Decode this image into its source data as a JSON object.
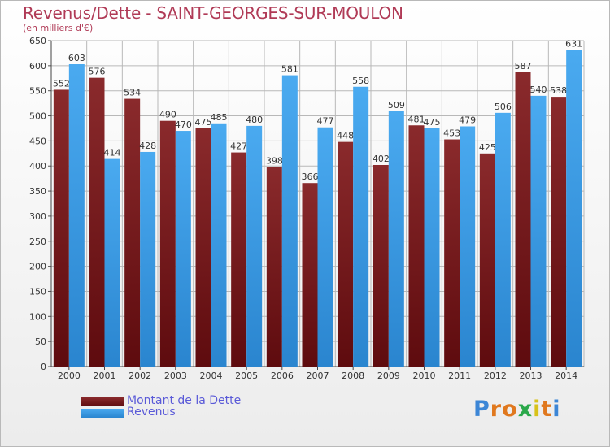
{
  "title": "Revenus/Dette - SAINT-GEORGES-SUR-MOULON",
  "subtitle": "(en milliers d'€)",
  "logo": "Proxiti",
  "colors": {
    "dette": "#7a1f22",
    "revenus": "#3a9fe6",
    "grid": "#b8b8b8",
    "title": "#b03a56",
    "legend_text": "#5a5ad8"
  },
  "chart_data": {
    "type": "bar",
    "categories": [
      "2000",
      "2001",
      "2002",
      "2003",
      "2004",
      "2005",
      "2006",
      "2007",
      "2008",
      "2009",
      "2010",
      "2011",
      "2012",
      "2013",
      "2014"
    ],
    "series": [
      {
        "name": "Montant de la Dette",
        "values": [
          552,
          576,
          534,
          490,
          475,
          427,
          398,
          366,
          448,
          402,
          481,
          453,
          425,
          587,
          538
        ]
      },
      {
        "name": "Revenus",
        "values": [
          603,
          414,
          428,
          470,
          485,
          480,
          581,
          477,
          558,
          509,
          475,
          479,
          506,
          540,
          631
        ]
      }
    ],
    "ylim": [
      0,
      650
    ],
    "yticks": [
      0,
      50,
      100,
      150,
      200,
      250,
      300,
      350,
      400,
      450,
      500,
      550,
      600,
      650
    ],
    "grid": true,
    "legend_position": "bottom-left"
  }
}
